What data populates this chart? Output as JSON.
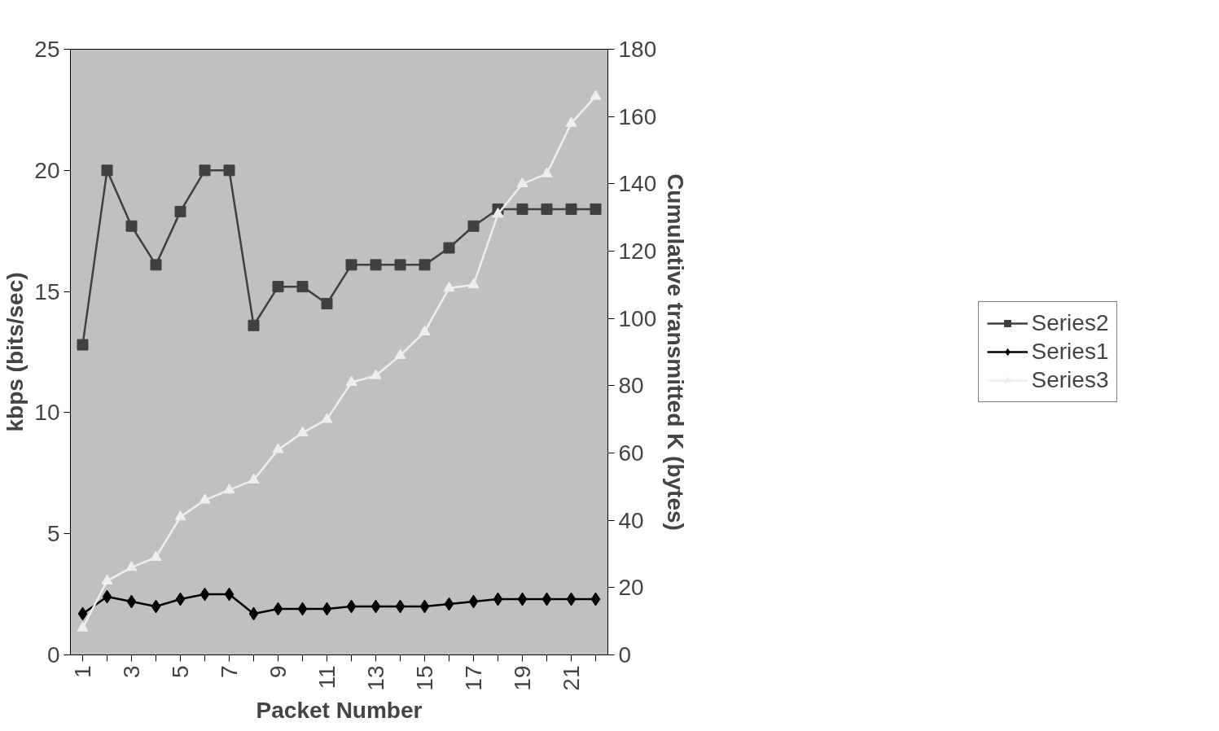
{
  "chart_data": {
    "type": "line",
    "xlabel": "Packet Number",
    "ylabel": "kbps (bits/sec)",
    "y2label": "Cumulative transmitted K (bytes)",
    "categories": [
      "1",
      null,
      "3",
      null,
      "5",
      null,
      "7",
      null,
      "9",
      null,
      "11",
      null,
      "13",
      null,
      "15",
      null,
      "17",
      null,
      "19",
      null,
      "21",
      null
    ],
    "series": [
      {
        "name": "Series2",
        "color": "#404040",
        "marker": "square",
        "values": [
          12.8,
          20.0,
          17.7,
          16.1,
          18.3,
          20.0,
          20.0,
          13.6,
          15.2,
          15.2,
          14.5,
          16.1,
          16.1,
          16.1,
          16.1,
          16.8,
          17.7,
          18.4,
          18.4,
          18.4,
          18.4,
          18.4
        ]
      },
      {
        "name": "Series1",
        "color": "#000000",
        "marker": "diamond",
        "values": [
          1.7,
          2.4,
          2.2,
          2.0,
          2.3,
          2.5,
          2.5,
          1.7,
          1.9,
          1.9,
          1.9,
          2.0,
          2.0,
          2.0,
          2.0,
          2.1,
          2.2,
          2.3,
          2.3,
          2.3,
          2.3,
          2.3
        ]
      },
      {
        "name": "Series3",
        "color": "#eeeeee",
        "marker": "triangle",
        "axis": "y2",
        "values": [
          8,
          22,
          26,
          29,
          41,
          46,
          49,
          52,
          61,
          66,
          70,
          81,
          83,
          89,
          96,
          109,
          110,
          131,
          140,
          143,
          158,
          166
        ]
      }
    ],
    "ylim": [
      0,
      25
    ],
    "yticks": [
      0,
      5,
      10,
      15,
      20,
      25
    ],
    "y2lim": [
      0,
      180
    ],
    "y2ticks": [
      0,
      20,
      40,
      60,
      80,
      100,
      120,
      140,
      160,
      180
    ],
    "legend": "right",
    "grid": false
  }
}
